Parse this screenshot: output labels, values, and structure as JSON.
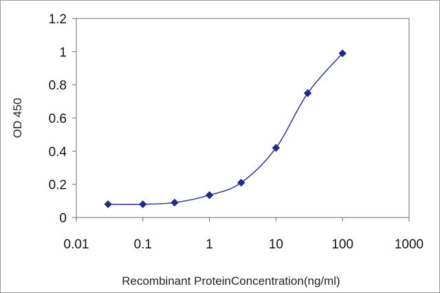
{
  "chart_data": {
    "type": "line",
    "title": "",
    "xlabel": "Recombinant ProteinConcentration(ng/ml)",
    "ylabel": "OD 450",
    "x_scale": "log",
    "xlim": [
      0.01,
      1000
    ],
    "ylim": [
      0,
      1.2
    ],
    "x_ticks": [
      0.01,
      0.1,
      1,
      10,
      100,
      1000
    ],
    "x_tick_labels": [
      "0.01",
      "0.1",
      "1",
      "10",
      "100",
      "1000"
    ],
    "y_ticks": [
      0,
      0.2,
      0.4,
      0.6,
      0.8,
      1,
      1.2
    ],
    "y_tick_labels": [
      "0",
      "0.2",
      "0.4",
      "0.6",
      "0.8",
      "1",
      "1.2"
    ],
    "grid": false,
    "legend": "none",
    "series": [
      {
        "color": "#3a3fa6",
        "marker": "diamond",
        "x": [
          0.03,
          0.1,
          0.3,
          1,
          3,
          10,
          30,
          100
        ],
        "y": [
          0.08,
          0.08,
          0.09,
          0.135,
          0.21,
          0.42,
          0.75,
          0.99
        ]
      }
    ]
  }
}
